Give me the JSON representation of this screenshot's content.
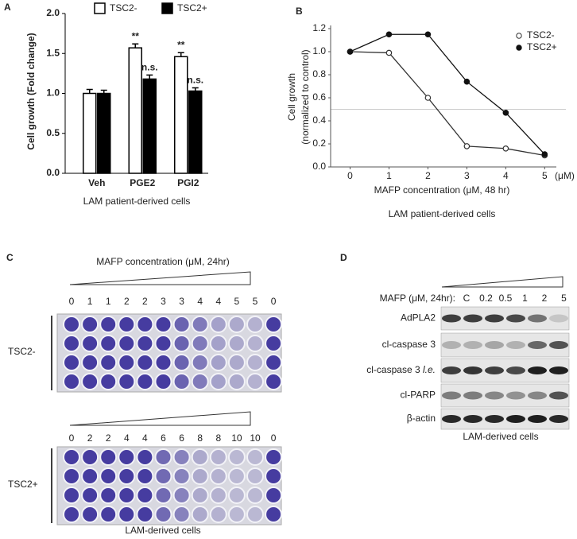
{
  "chart_data": [
    {
      "type": "bar",
      "panel": "A",
      "ylabel": "Cell growth (Fold change)",
      "xlabel": "LAM patient-derived  cells",
      "categories": [
        "Veh",
        "PGE2",
        "PGI2"
      ],
      "series": [
        {
          "name": "TSC2-",
          "color": "#ffffff",
          "values": [
            1.0,
            1.57,
            1.46
          ],
          "errors": [
            0.05,
            0.05,
            0.05
          ],
          "annotations": [
            null,
            "**",
            "**"
          ]
        },
        {
          "name": "TSC2+",
          "color": "#000000",
          "values": [
            1.0,
            1.18,
            1.03
          ],
          "errors": [
            0.04,
            0.05,
            0.04
          ],
          "annotations": [
            null,
            "n.s.",
            "n.s."
          ]
        }
      ],
      "ylim": [
        0,
        2.0
      ],
      "yticks": [
        {
          "value": 0,
          "label": "0.0"
        },
        {
          "value": 0.5,
          "label": "0.5"
        },
        {
          "value": 1,
          "label": "1.0"
        },
        {
          "value": 1.5,
          "label": "1.5"
        },
        {
          "value": 2,
          "label": "2.0"
        }
      ]
    },
    {
      "type": "line",
      "panel": "B",
      "ylabel": [
        "Cell growth",
        "(normalized to control)"
      ],
      "xlabel": "MAFP concentration (μM, 48 hr)",
      "x_unit": "(μM)",
      "caption": "LAM patient-derived  cells",
      "x": [
        0,
        1,
        2,
        3,
        4,
        5
      ],
      "series": [
        {
          "name": "TSC2-",
          "color": "#333333",
          "marker": "open",
          "values": [
            1.0,
            0.99,
            0.6,
            0.18,
            0.16,
            0.1
          ]
        },
        {
          "name": "TSC2+",
          "color": "#111111",
          "marker": "filled",
          "values": [
            1.0,
            1.15,
            1.15,
            0.74,
            0.47,
            0.11
          ]
        }
      ],
      "xlim": [
        -0.5,
        5.3
      ],
      "xticks": [
        0,
        1,
        2,
        3,
        4,
        5
      ],
      "ylim": [
        0,
        1.2
      ],
      "yticks": [
        {
          "value": 0,
          "label": "0.0"
        },
        {
          "value": 0.2,
          "label": "0.2"
        },
        {
          "value": 0.4,
          "label": "0.4"
        },
        {
          "value": 0.6,
          "label": "0.6"
        },
        {
          "value": 0.8,
          "label": "0.8"
        },
        {
          "value": 1,
          "label": "1.0"
        },
        {
          "value": 1.2,
          "label": "1.2"
        }
      ],
      "reference_line": 0.5
    }
  ],
  "panel_c": {
    "panel": "C",
    "title": "MAFP concentration (μM, 24hr)",
    "plates": [
      {
        "label": "TSC2-",
        "columns": [
          "0",
          "1",
          "1",
          "2",
          "2",
          "3",
          "3",
          "4",
          "4",
          "5",
          "5",
          "0"
        ]
      },
      {
        "label": "TSC2+",
        "columns": [
          "0",
          "2",
          "2",
          "4",
          "4",
          "6",
          "6",
          "8",
          "8",
          "10",
          "10",
          "0"
        ]
      }
    ],
    "caption": "LAM-derived  cells"
  },
  "panel_d": {
    "panel": "D",
    "header": "MAFP (μM, 24hr):",
    "lanes": [
      "C",
      "0.2",
      "0.5",
      "1",
      "2",
      "5"
    ],
    "rows": [
      {
        "label": "AdPLA2"
      },
      {
        "label": "cl-caspase 3"
      },
      {
        "label": "cl-caspase 3",
        "note": "l.e."
      },
      {
        "label": "cl-PARP"
      },
      {
        "label": "β-actin"
      }
    ],
    "caption": "LAM-derived  cells"
  }
}
